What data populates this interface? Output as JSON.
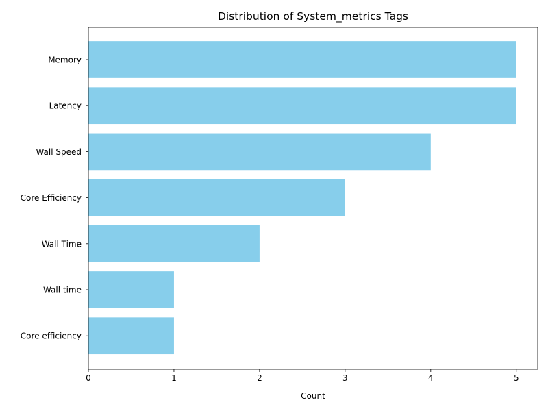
{
  "chart_data": {
    "type": "bar",
    "orientation": "horizontal",
    "title": "Distribution of System_metrics Tags",
    "xlabel": "Count",
    "ylabel": "",
    "categories": [
      "Memory",
      "Latency",
      "Wall Speed",
      "Core Efficiency",
      "Wall Time",
      "Wall time",
      "Core efficiency"
    ],
    "values": [
      5,
      5,
      4,
      3,
      2,
      1,
      1
    ],
    "xlim": [
      0,
      5.25
    ],
    "xticks": [
      0,
      1,
      2,
      3,
      4,
      5
    ],
    "xtick_labels": [
      "0",
      "1",
      "2",
      "3",
      "4",
      "5"
    ],
    "grid": false,
    "legend": "none",
    "colors": {
      "bar": "#87ceeb",
      "axis": "#000000",
      "background": "#ffffff"
    }
  }
}
